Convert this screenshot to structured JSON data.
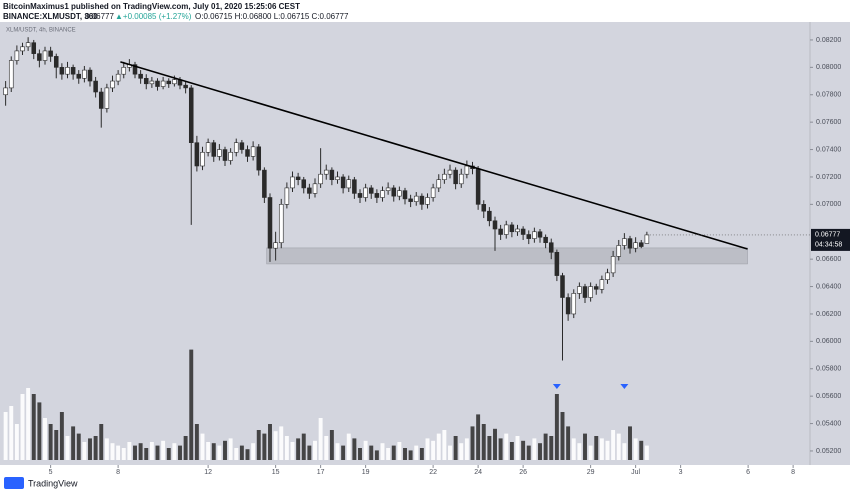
{
  "header": {
    "author_line": "BitcoinMaximus1 published on TradingView.com, July 01, 2020 15:25:06 CEST",
    "symbol": "BINANCE:XLMUSDT, 360",
    "last": "0.06777",
    "change": "▲+0.00085 (+1.27%)",
    "ohlc": "O:0.06715 H:0.06800 L:0.06715 C:0.06777"
  },
  "footer": {
    "brand": "TradingView"
  },
  "chart_data": {
    "type": "candlestick",
    "legend_text": "XLM/USDT, 4h, BINANCE",
    "up_color": "#ffffff",
    "down_color": "#2a2a2a",
    "wick_color": "#2a2a2a",
    "background": "#d3d5de",
    "open": [
      0.078,
      0.0785,
      0.0805,
      0.0812,
      0.0815,
      0.0818,
      0.081,
      0.0805,
      0.0812,
      0.0808,
      0.08,
      0.0795,
      0.08,
      0.0795,
      0.0792,
      0.0798,
      0.079,
      0.0782,
      0.077,
      0.0785,
      0.079,
      0.0795,
      0.08,
      0.0802,
      0.0795,
      0.0792,
      0.0788,
      0.079,
      0.0786,
      0.079,
      0.0788,
      0.0791,
      0.0787,
      0.0785,
      0.0745,
      0.0728,
      0.0738,
      0.0745,
      0.0735,
      0.074,
      0.0732,
      0.0738,
      0.0745,
      0.074,
      0.0735,
      0.0742,
      0.0725,
      0.0705,
      0.0668,
      0.0672,
      0.07,
      0.0712,
      0.072,
      0.0718,
      0.0712,
      0.0708,
      0.0715,
      0.0722,
      0.0725,
      0.0718,
      0.072,
      0.0712,
      0.0718,
      0.0708,
      0.0705,
      0.0712,
      0.0708,
      0.0705,
      0.071,
      0.0712,
      0.0706,
      0.071,
      0.0704,
      0.0702,
      0.0706,
      0.07,
      0.0705,
      0.0712,
      0.0718,
      0.0722,
      0.0725,
      0.0715,
      0.0722,
      0.0728,
      0.0726,
      0.07,
      0.0695,
      0.0688,
      0.0682,
      0.0678,
      0.0685,
      0.068,
      0.0682,
      0.0678,
      0.0675,
      0.068,
      0.0676,
      0.0672,
      0.0665,
      0.0648,
      0.0632,
      0.062,
      0.0635,
      0.064,
      0.0632,
      0.064,
      0.0638,
      0.0645,
      0.065,
      0.0662,
      0.067,
      0.0675,
      0.0668,
      0.0672,
      0.06715
    ],
    "high": [
      0.079,
      0.0808,
      0.0816,
      0.0818,
      0.0822,
      0.082,
      0.0813,
      0.0815,
      0.0815,
      0.081,
      0.0803,
      0.0804,
      0.0802,
      0.0798,
      0.0801,
      0.08,
      0.0793,
      0.0785,
      0.0788,
      0.0794,
      0.0798,
      0.0804,
      0.0806,
      0.0804,
      0.0798,
      0.0795,
      0.0793,
      0.0792,
      0.0793,
      0.0792,
      0.0794,
      0.0793,
      0.079,
      0.0787,
      0.075,
      0.0742,
      0.0748,
      0.0747,
      0.0744,
      0.0742,
      0.0741,
      0.0748,
      0.0747,
      0.0743,
      0.0746,
      0.0744,
      0.0727,
      0.0708,
      0.068,
      0.0704,
      0.0716,
      0.0724,
      0.0723,
      0.072,
      0.0715,
      0.0719,
      0.0741,
      0.0729,
      0.0727,
      0.0724,
      0.0722,
      0.0721,
      0.072,
      0.0711,
      0.0715,
      0.0714,
      0.0711,
      0.0713,
      0.0716,
      0.0714,
      0.0713,
      0.0712,
      0.0707,
      0.0709,
      0.0708,
      0.0708,
      0.0715,
      0.0722,
      0.0726,
      0.0729,
      0.0727,
      0.0726,
      0.0732,
      0.0731,
      0.0728,
      0.0703,
      0.0698,
      0.0691,
      0.0685,
      0.0688,
      0.0687,
      0.0685,
      0.0684,
      0.0681,
      0.0683,
      0.0682,
      0.0678,
      0.0675,
      0.0667,
      0.065,
      0.0635,
      0.0638,
      0.0643,
      0.0642,
      0.0643,
      0.0642,
      0.0648,
      0.0653,
      0.0666,
      0.0674,
      0.0679,
      0.0677,
      0.0676,
      0.0674,
      0.068
    ],
    "low": [
      0.0772,
      0.0782,
      0.0802,
      0.0809,
      0.0812,
      0.0806,
      0.08,
      0.0802,
      0.0804,
      0.0792,
      0.0791,
      0.0792,
      0.0791,
      0.0788,
      0.0789,
      0.0786,
      0.0778,
      0.0756,
      0.0767,
      0.0782,
      0.0787,
      0.0792,
      0.0797,
      0.0792,
      0.0788,
      0.0784,
      0.0785,
      0.0783,
      0.0784,
      0.0785,
      0.0786,
      0.0784,
      0.0781,
      0.0685,
      0.0724,
      0.0725,
      0.0735,
      0.0731,
      0.0732,
      0.0728,
      0.0729,
      0.0735,
      0.0737,
      0.0731,
      0.0732,
      0.0721,
      0.0701,
      0.0658,
      0.0659,
      0.0668,
      0.0697,
      0.0709,
      0.0714,
      0.0708,
      0.0704,
      0.0705,
      0.0712,
      0.0718,
      0.0714,
      0.0715,
      0.0708,
      0.0709,
      0.0704,
      0.0701,
      0.0702,
      0.0704,
      0.0701,
      0.0702,
      0.0707,
      0.0702,
      0.0703,
      0.07,
      0.0698,
      0.0699,
      0.0696,
      0.0697,
      0.0702,
      0.0709,
      0.0715,
      0.0719,
      0.0711,
      0.0712,
      0.0719,
      0.0722,
      0.0696,
      0.069,
      0.0684,
      0.0666,
      0.0674,
      0.0675,
      0.0676,
      0.0677,
      0.0674,
      0.0671,
      0.0672,
      0.0672,
      0.0668,
      0.066,
      0.0644,
      0.0586,
      0.0615,
      0.0617,
      0.0631,
      0.0628,
      0.0629,
      0.0634,
      0.0635,
      0.0642,
      0.0647,
      0.0659,
      0.0667,
      0.0664,
      0.0665,
      0.0668,
      0.06715
    ],
    "close": [
      0.0785,
      0.0805,
      0.0812,
      0.0815,
      0.0818,
      0.081,
      0.0805,
      0.0812,
      0.0808,
      0.08,
      0.0795,
      0.08,
      0.0795,
      0.0792,
      0.0798,
      0.079,
      0.0782,
      0.077,
      0.0785,
      0.079,
      0.0795,
      0.08,
      0.0802,
      0.0795,
      0.0792,
      0.0788,
      0.079,
      0.0786,
      0.079,
      0.0788,
      0.0791,
      0.0787,
      0.0785,
      0.0745,
      0.0728,
      0.0738,
      0.0745,
      0.0735,
      0.074,
      0.0732,
      0.0738,
      0.0745,
      0.074,
      0.0735,
      0.0742,
      0.0725,
      0.0705,
      0.0668,
      0.0672,
      0.07,
      0.0712,
      0.072,
      0.0718,
      0.0712,
      0.0708,
      0.0715,
      0.0722,
      0.0725,
      0.0718,
      0.072,
      0.0712,
      0.0718,
      0.0708,
      0.0705,
      0.0712,
      0.0708,
      0.0705,
      0.071,
      0.0712,
      0.0706,
      0.071,
      0.0704,
      0.0702,
      0.0706,
      0.07,
      0.0705,
      0.0712,
      0.0718,
      0.0722,
      0.0725,
      0.0715,
      0.0722,
      0.0728,
      0.0726,
      0.07,
      0.0695,
      0.0688,
      0.0682,
      0.0678,
      0.0685,
      0.068,
      0.0682,
      0.0678,
      0.0675,
      0.068,
      0.0676,
      0.0672,
      0.0665,
      0.0648,
      0.0632,
      0.062,
      0.0635,
      0.064,
      0.0632,
      0.064,
      0.0638,
      0.0645,
      0.065,
      0.0662,
      0.067,
      0.0675,
      0.0668,
      0.0672,
      0.06692,
      0.06777
    ],
    "volume": [
      40,
      45,
      30,
      55,
      60,
      55,
      48,
      35,
      30,
      25,
      40,
      20,
      28,
      22,
      15,
      18,
      20,
      30,
      18,
      14,
      12,
      10,
      15,
      12,
      14,
      10,
      15,
      12,
      16,
      10,
      14,
      12,
      20,
      92,
      30,
      22,
      15,
      14,
      12,
      16,
      18,
      10,
      12,
      9,
      14,
      25,
      22,
      30,
      24,
      28,
      20,
      15,
      18,
      22,
      12,
      16,
      35,
      20,
      25,
      14,
      12,
      22,
      18,
      10,
      16,
      12,
      8,
      14,
      10,
      12,
      15,
      10,
      8,
      12,
      10,
      18,
      16,
      22,
      25,
      12,
      20,
      14,
      18,
      28,
      38,
      30,
      20,
      26,
      18,
      22,
      15,
      20,
      16,
      12,
      18,
      14,
      22,
      20,
      55,
      40,
      28,
      18,
      14,
      22,
      12,
      20,
      18,
      16,
      25,
      22,
      14,
      28,
      18,
      16,
      12
    ],
    "vlim": [
      0,
      100
    ],
    "xlim": [
      -1,
      143
    ],
    "xticks": [
      {
        "value": 8,
        "label": "5"
      },
      {
        "value": 20,
        "label": "8"
      },
      {
        "value": 36,
        "label": "12"
      },
      {
        "value": 48,
        "label": "15"
      },
      {
        "value": 56,
        "label": "17"
      },
      {
        "value": 64,
        "label": "19"
      },
      {
        "value": 76,
        "label": "22"
      },
      {
        "value": 84,
        "label": "24"
      },
      {
        "value": 92,
        "label": "26"
      },
      {
        "value": 104,
        "label": "29"
      },
      {
        "value": 112,
        "label": "Jul"
      },
      {
        "value": 120,
        "label": "3"
      },
      {
        "value": 132,
        "label": "6"
      },
      {
        "value": 140,
        "label": "8"
      }
    ],
    "ylim": [
      0.05134,
      0.08331
    ],
    "yticks": [
      {
        "value": 0.082,
        "label": "0.08200"
      },
      {
        "value": 0.08,
        "label": "0.08000"
      },
      {
        "value": 0.078,
        "label": "0.07800"
      },
      {
        "value": 0.076,
        "label": "0.07600"
      },
      {
        "value": 0.074,
        "label": "0.07400"
      },
      {
        "value": 0.072,
        "label": "0.07200"
      },
      {
        "value": 0.07,
        "label": "0.07000"
      },
      {
        "value": 0.066,
        "label": "0.06600"
      },
      {
        "value": 0.064,
        "label": "0.06400"
      },
      {
        "value": 0.062,
        "label": "0.06200"
      },
      {
        "value": 0.06,
        "label": "0.06000"
      },
      {
        "value": 0.058,
        "label": "0.05800"
      },
      {
        "value": 0.056,
        "label": "0.05600"
      },
      {
        "value": 0.054,
        "label": "0.05400"
      },
      {
        "value": 0.052,
        "label": "0.05200"
      }
    ],
    "last_price": {
      "value": 0.06777,
      "label": "0.06777",
      "countdown": "04:34:58"
    },
    "trendline": {
      "x": [
        20.4,
        131.9
      ],
      "y": [
        0.0804,
        0.06674
      ],
      "color": "#000000"
    },
    "zone": {
      "x": [
        46.4,
        131.9
      ],
      "y": [
        0.06565,
        0.06682
      ],
      "color": "#b2b4bc"
    },
    "markers": {
      "x": [
        98,
        110
      ],
      "color": "#2962ff"
    }
  }
}
